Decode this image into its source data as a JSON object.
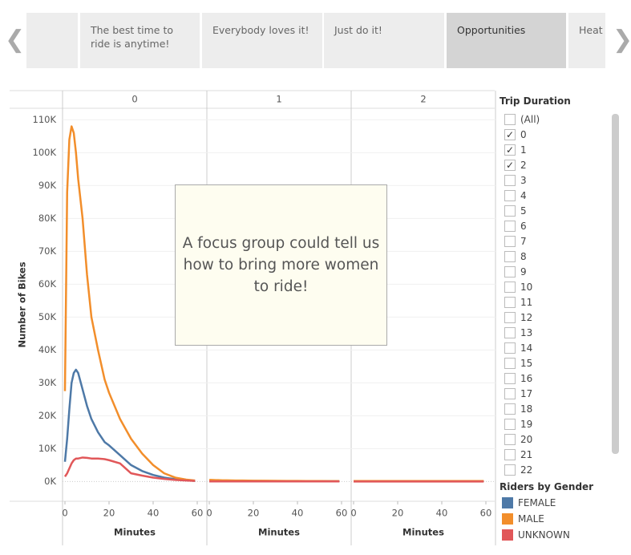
{
  "story": {
    "tabs": [
      "The best time to ride is anytime!",
      "Everybody loves it!",
      "Just do it!",
      "Opportunities",
      "Heat W"
    ],
    "selected": 3
  },
  "chart_data": {
    "type": "line",
    "facets": [
      "0",
      "1",
      "2"
    ],
    "x_label": "Minutes",
    "y_label": "Number of Bikes",
    "annotation": "A focus group could tell us how to bring more women to ride!",
    "x": [
      0,
      1,
      2,
      3,
      4,
      5,
      6,
      8,
      10,
      12,
      15,
      18,
      20,
      25,
      30,
      35,
      40,
      45,
      50,
      55,
      59
    ],
    "xlim": [
      0,
      60
    ],
    "xticks": [
      0,
      20,
      40,
      60
    ],
    "ylim": [
      -6000,
      113500
    ],
    "yticks": [
      {
        "value": 0,
        "label": "0K"
      },
      {
        "value": 10000,
        "label": "10K"
      },
      {
        "value": 20000,
        "label": "20K"
      },
      {
        "value": 30000,
        "label": "30K"
      },
      {
        "value": 40000,
        "label": "40K"
      },
      {
        "value": 50000,
        "label": "50K"
      },
      {
        "value": 60000,
        "label": "60K"
      },
      {
        "value": 70000,
        "label": "70K"
      },
      {
        "value": 80000,
        "label": "80K"
      },
      {
        "value": 90000,
        "label": "90K"
      },
      {
        "value": 100000,
        "label": "100K"
      },
      {
        "value": 110000,
        "label": "110K"
      }
    ],
    "grid": true,
    "legend_title": "Riders by Gender",
    "series": [
      {
        "name": "FEMALE",
        "color": "#4e79a7",
        "values": [
          [
            6000,
            13000,
            22000,
            30000,
            33000,
            34000,
            33000,
            28000,
            23000,
            19000,
            15000,
            12000,
            11000,
            8000,
            5000,
            3200,
            2000,
            1200,
            700,
            400,
            200
          ],
          [
            300,
            290,
            280,
            270,
            260,
            250,
            240,
            230,
            220,
            210,
            200,
            190,
            180,
            170,
            160,
            150,
            140,
            130,
            120,
            110,
            100
          ],
          [
            100,
            100,
            100,
            100,
            100,
            100,
            100,
            100,
            100,
            100,
            100,
            100,
            100,
            100,
            100,
            100,
            100,
            100,
            100,
            100,
            100
          ]
        ]
      },
      {
        "name": "MALE",
        "color": "#f28e2b",
        "values": [
          [
            27500,
            88000,
            104000,
            108000,
            106000,
            100000,
            92000,
            80000,
            63000,
            50000,
            40000,
            31000,
            27000,
            19000,
            13000,
            8500,
            5000,
            2500,
            1200,
            600,
            300
          ],
          [
            500,
            480,
            460,
            440,
            420,
            400,
            380,
            360,
            340,
            320,
            300,
            280,
            260,
            240,
            220,
            200,
            180,
            160,
            150,
            140,
            130
          ],
          [
            150,
            150,
            150,
            150,
            150,
            150,
            150,
            150,
            150,
            150,
            150,
            150,
            150,
            150,
            150,
            150,
            150,
            150,
            150,
            150,
            150
          ]
        ]
      },
      {
        "name": "UNKNOWN",
        "color": "#e15759",
        "values": [
          [
            1500,
            2500,
            4000,
            5500,
            6500,
            7000,
            7000,
            7300,
            7200,
            7000,
            7000,
            6800,
            6500,
            5500,
            2500,
            1800,
            1200,
            800,
            500,
            300,
            200
          ],
          [
            50,
            50,
            50,
            50,
            50,
            50,
            50,
            50,
            50,
            50,
            50,
            50,
            50,
            50,
            50,
            50,
            50,
            50,
            50,
            50,
            50
          ],
          [
            20,
            20,
            20,
            20,
            20,
            20,
            20,
            20,
            20,
            20,
            20,
            20,
            20,
            20,
            20,
            20,
            20,
            20,
            20,
            20,
            20
          ]
        ]
      }
    ]
  },
  "filter": {
    "title": "Trip Duration",
    "items": [
      {
        "label": "(All)",
        "checked": false
      },
      {
        "label": "0",
        "checked": true
      },
      {
        "label": "1",
        "checked": true
      },
      {
        "label": "2",
        "checked": true
      },
      {
        "label": "3",
        "checked": false
      },
      {
        "label": "4",
        "checked": false
      },
      {
        "label": "5",
        "checked": false
      },
      {
        "label": "6",
        "checked": false
      },
      {
        "label": "7",
        "checked": false
      },
      {
        "label": "8",
        "checked": false
      },
      {
        "label": "9",
        "checked": false
      },
      {
        "label": "10",
        "checked": false
      },
      {
        "label": "11",
        "checked": false
      },
      {
        "label": "12",
        "checked": false
      },
      {
        "label": "13",
        "checked": false
      },
      {
        "label": "14",
        "checked": false
      },
      {
        "label": "15",
        "checked": false
      },
      {
        "label": "16",
        "checked": false
      },
      {
        "label": "17",
        "checked": false
      },
      {
        "label": "18",
        "checked": false
      },
      {
        "label": "19",
        "checked": false
      },
      {
        "label": "20",
        "checked": false
      },
      {
        "label": "21",
        "checked": false
      },
      {
        "label": "22",
        "checked": false
      }
    ]
  }
}
